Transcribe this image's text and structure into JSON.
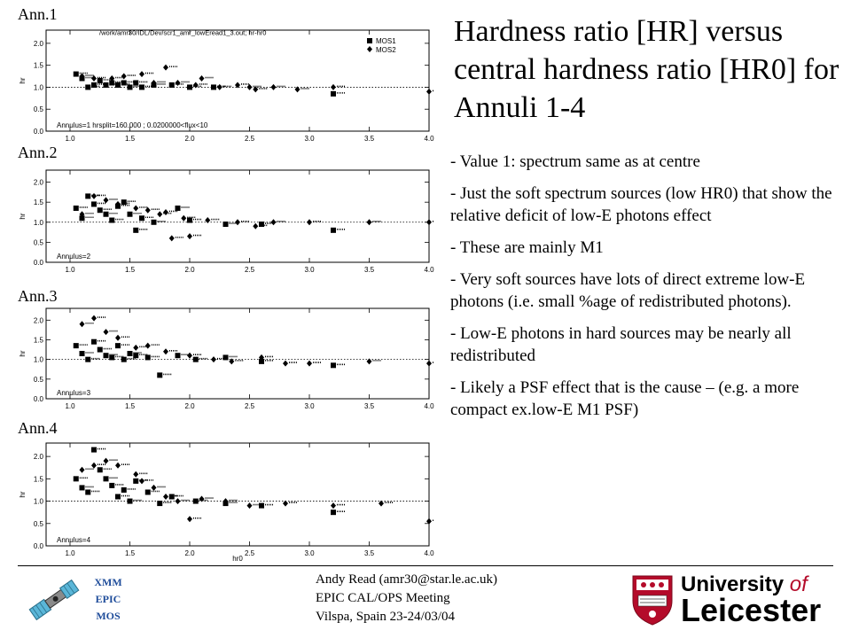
{
  "title": "Hardness ratio [HR] versus central hardness ratio [HR0] for Annuli 1-4",
  "annulus_labels": [
    "Ann.1",
    "Ann.2",
    "Ann.3",
    "Ann.4"
  ],
  "plot1_header": "/work/amr30/IDL/Dev/scr1_amr_lowEread1_3.out; hr-hr0",
  "plot_legend": {
    "mos1": "MOS1",
    "mos2": "MOS2"
  },
  "plot_annotations": [
    "Annulus=1  hrsplit=160.000 ; 0.0200000<flux<10",
    "Annulus=2",
    "Annulus=3",
    "Annulus=4"
  ],
  "y_axis_label": "hr",
  "x_axis_label": "hr0",
  "x_ticks": [
    "1.0",
    "1.5",
    "2.0",
    "2.5",
    "3.0",
    "3.5",
    "4.0"
  ],
  "y_ticks": [
    "0.0",
    "0.5",
    "1.0",
    "1.5",
    "2.0"
  ],
  "bullets": [
    "- Value 1: spectrum same as at centre",
    "- Just the soft spectrum sources (low HR0) that show the relative deficit of low-E photons effect",
    "- These are mainly M1",
    "- Very soft sources have lots of direct extreme low-E photons (i.e. small %age of redistributed photons).",
    "- Low-E photons in hard sources may be nearly all redistributed",
    "- Likely a PSF effect that is the cause – (e.g. a more compact ex.low-E M1 PSF)"
  ],
  "footer": {
    "author": "Andy Read (amr30@star.le.ac.uk)",
    "meeting": "EPIC CAL/OPS Meeting",
    "location": "Vilspa, Spain 23-24/03/04",
    "xmm_lines": [
      "XMM",
      "EPIC",
      "MOS"
    ],
    "logo_line1_a": "University",
    "logo_line1_b": "of",
    "logo_line2": "Leicester"
  },
  "colors": {
    "accent_blue": "#1e4c9a",
    "leicester_red": "#b40b2a"
  },
  "chart_data": [
    {
      "type": "scatter",
      "annulus": 1,
      "xlabel": "",
      "ylabel": "hr",
      "xlim": [
        0.8,
        4.0
      ],
      "ylim": [
        0.0,
        2.3
      ],
      "reference_line": 1.0,
      "series": [
        {
          "name": "MOS1",
          "marker": "square",
          "points": [
            [
              1.05,
              1.3
            ],
            [
              1.1,
              1.2
            ],
            [
              1.15,
              1.0
            ],
            [
              1.2,
              1.05
            ],
            [
              1.25,
              1.15
            ],
            [
              1.3,
              1.05
            ],
            [
              1.35,
              1.1
            ],
            [
              1.4,
              1.05
            ],
            [
              1.45,
              1.1
            ],
            [
              1.5,
              1.0
            ],
            [
              1.55,
              1.1
            ],
            [
              1.6,
              1.0
            ],
            [
              1.7,
              1.05
            ],
            [
              1.85,
              1.05
            ],
            [
              2.0,
              1.0
            ],
            [
              2.2,
              1.0
            ],
            [
              3.2,
              0.85
            ]
          ]
        },
        {
          "name": "MOS2",
          "marker": "diamond",
          "points": [
            [
              1.1,
              1.25
            ],
            [
              1.2,
              1.2
            ],
            [
              1.35,
              1.2
            ],
            [
              1.45,
              1.25
            ],
            [
              1.6,
              1.3
            ],
            [
              1.7,
              1.1
            ],
            [
              1.8,
              1.45
            ],
            [
              1.9,
              1.1
            ],
            [
              2.05,
              1.05
            ],
            [
              2.1,
              1.2
            ],
            [
              2.25,
              1.0
            ],
            [
              2.4,
              1.05
            ],
            [
              2.5,
              1.0
            ],
            [
              2.55,
              0.95
            ],
            [
              2.7,
              1.0
            ],
            [
              2.9,
              0.95
            ],
            [
              3.2,
              1.0
            ],
            [
              4.0,
              0.9
            ]
          ]
        }
      ]
    },
    {
      "type": "scatter",
      "annulus": 2,
      "xlabel": "",
      "ylabel": "hr",
      "xlim": [
        0.8,
        4.0
      ],
      "ylim": [
        0.0,
        2.3
      ],
      "reference_line": 1.0,
      "series": [
        {
          "name": "MOS1",
          "marker": "square",
          "points": [
            [
              1.05,
              1.35
            ],
            [
              1.1,
              1.1
            ],
            [
              1.15,
              1.65
            ],
            [
              1.2,
              1.45
            ],
            [
              1.25,
              1.3
            ],
            [
              1.3,
              1.2
            ],
            [
              1.35,
              1.05
            ],
            [
              1.4,
              1.4
            ],
            [
              1.45,
              1.5
            ],
            [
              1.5,
              1.2
            ],
            [
              1.55,
              0.8
            ],
            [
              1.6,
              1.1
            ],
            [
              1.7,
              1.0
            ],
            [
              1.9,
              1.35
            ],
            [
              2.0,
              1.05
            ],
            [
              2.3,
              0.95
            ],
            [
              2.6,
              0.95
            ],
            [
              3.2,
              0.8
            ]
          ]
        },
        {
          "name": "MOS2",
          "marker": "diamond",
          "points": [
            [
              1.1,
              1.2
            ],
            [
              1.2,
              1.65
            ],
            [
              1.3,
              1.55
            ],
            [
              1.4,
              1.45
            ],
            [
              1.55,
              1.35
            ],
            [
              1.65,
              1.3
            ],
            [
              1.75,
              1.2
            ],
            [
              1.8,
              1.25
            ],
            [
              1.85,
              0.6
            ],
            [
              1.95,
              1.1
            ],
            [
              2.0,
              0.65
            ],
            [
              2.15,
              1.05
            ],
            [
              2.4,
              1.0
            ],
            [
              2.55,
              0.9
            ],
            [
              2.7,
              1.0
            ],
            [
              3.0,
              1.0
            ],
            [
              3.5,
              1.0
            ],
            [
              4.0,
              1.0
            ]
          ]
        }
      ]
    },
    {
      "type": "scatter",
      "annulus": 3,
      "xlabel": "",
      "ylabel": "hr",
      "xlim": [
        0.8,
        4.0
      ],
      "ylim": [
        0.0,
        2.3
      ],
      "reference_line": 1.0,
      "series": [
        {
          "name": "MOS1",
          "marker": "square",
          "points": [
            [
              1.05,
              1.35
            ],
            [
              1.1,
              1.15
            ],
            [
              1.15,
              1.0
            ],
            [
              1.2,
              1.45
            ],
            [
              1.25,
              1.25
            ],
            [
              1.3,
              1.1
            ],
            [
              1.35,
              1.05
            ],
            [
              1.4,
              1.35
            ],
            [
              1.45,
              1.0
            ],
            [
              1.5,
              1.15
            ],
            [
              1.55,
              1.1
            ],
            [
              1.65,
              1.05
            ],
            [
              1.75,
              0.6
            ],
            [
              1.9,
              1.1
            ],
            [
              2.05,
              1.0
            ],
            [
              2.3,
              1.05
            ],
            [
              2.6,
              0.95
            ],
            [
              3.2,
              0.85
            ]
          ]
        },
        {
          "name": "MOS2",
          "marker": "diamond",
          "points": [
            [
              1.1,
              1.9
            ],
            [
              1.2,
              2.05
            ],
            [
              1.3,
              1.7
            ],
            [
              1.4,
              1.55
            ],
            [
              1.55,
              1.3
            ],
            [
              1.65,
              1.35
            ],
            [
              1.8,
              1.2
            ],
            [
              2.0,
              1.1
            ],
            [
              2.2,
              1.0
            ],
            [
              2.35,
              0.95
            ],
            [
              2.6,
              1.05
            ],
            [
              2.8,
              0.9
            ],
            [
              3.0,
              0.9
            ],
            [
              3.5,
              0.95
            ],
            [
              4.0,
              0.9
            ]
          ]
        }
      ]
    },
    {
      "type": "scatter",
      "annulus": 4,
      "xlabel": "hr0",
      "ylabel": "hr",
      "xlim": [
        0.8,
        4.0
      ],
      "ylim": [
        0.0,
        2.3
      ],
      "reference_line": 1.0,
      "series": [
        {
          "name": "MOS1",
          "marker": "square",
          "points": [
            [
              1.05,
              1.5
            ],
            [
              1.1,
              1.3
            ],
            [
              1.15,
              1.2
            ],
            [
              1.2,
              2.15
            ],
            [
              1.25,
              1.7
            ],
            [
              1.3,
              1.5
            ],
            [
              1.35,
              1.35
            ],
            [
              1.4,
              1.1
            ],
            [
              1.45,
              1.25
            ],
            [
              1.5,
              1.0
            ],
            [
              1.55,
              1.45
            ],
            [
              1.65,
              1.2
            ],
            [
              1.75,
              0.95
            ],
            [
              1.85,
              1.1
            ],
            [
              2.05,
              1.0
            ],
            [
              2.3,
              0.95
            ],
            [
              2.6,
              0.9
            ],
            [
              3.2,
              0.75
            ]
          ]
        },
        {
          "name": "MOS2",
          "marker": "diamond",
          "points": [
            [
              1.1,
              1.7
            ],
            [
              1.2,
              1.8
            ],
            [
              1.3,
              1.9
            ],
            [
              1.4,
              1.8
            ],
            [
              1.55,
              1.6
            ],
            [
              1.6,
              1.45
            ],
            [
              1.7,
              1.3
            ],
            [
              1.8,
              1.1
            ],
            [
              1.9,
              1.0
            ],
            [
              2.0,
              0.6
            ],
            [
              2.1,
              1.05
            ],
            [
              2.3,
              1.0
            ],
            [
              2.5,
              0.9
            ],
            [
              2.8,
              0.95
            ],
            [
              3.2,
              0.9
            ],
            [
              3.6,
              0.95
            ],
            [
              4.0,
              0.55
            ]
          ]
        }
      ]
    }
  ]
}
